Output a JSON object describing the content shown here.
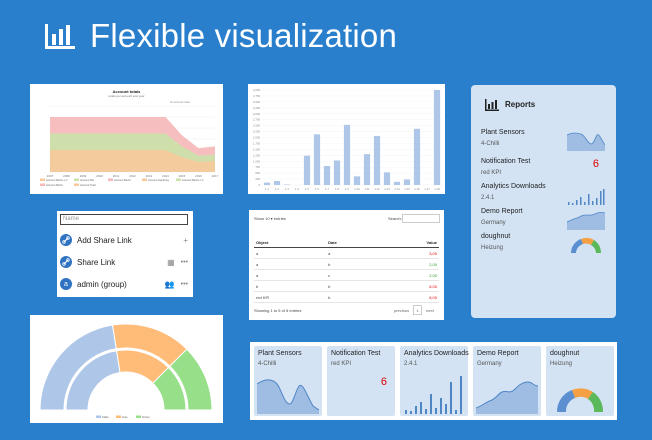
{
  "page": {
    "title": "Flexible visualization",
    "colors": {
      "background": "#2a7fcc",
      "accent_red": "#e00000",
      "bar_blue": "#aec7e8",
      "panel": "#d3e3f4"
    }
  },
  "area_chart": {
    "title": "Account totals",
    "subtitle": "totals per account and year",
    "toolbar": "Download data",
    "legend": [
      "Account Berlin e.V.",
      "Account Ber",
      "Account Berlin",
      "Account Hamburg",
      "Account Berlin e.V.",
      "Account Berlin",
      "Account Total"
    ],
    "chart_data": {
      "type": "area",
      "x": [
        "2007",
        "2008",
        "2009",
        "2010",
        "2011",
        "2012",
        "2013",
        "2014",
        "2015",
        "2016",
        "2017"
      ],
      "series": [
        {
          "values": [
            120000,
            120000,
            120000,
            120000,
            120000,
            120000,
            120000,
            120000,
            80000,
            55000,
            60000
          ]
        },
        {
          "values": [
            210000,
            210000,
            210000,
            210000,
            210000,
            210000,
            210000,
            210000,
            140000,
            90000,
            95000
          ]
        },
        {
          "values": [
            300000,
            300000,
            300000,
            300000,
            300000,
            300000,
            300000,
            300000,
            200000,
            130000,
            140000
          ]
        }
      ],
      "colors": [
        "#f7c99b",
        "#cbe2a8",
        "#f5b7b7"
      ]
    }
  },
  "bar_chart": {
    "chart_data": {
      "type": "bar",
      "categories": [
        "1.1",
        "1.2",
        "1.3",
        "1.4",
        "1.5",
        "1.6",
        "1.7",
        "1.8",
        "1.9",
        "1.10",
        "1.11",
        "1.12",
        "1.13",
        "1.14",
        "1.15",
        "1.16",
        "1.17",
        "1.18"
      ],
      "values": [
        150,
        250,
        30,
        0,
        1850,
        3200,
        1200,
        1550,
        3800,
        550,
        1950,
        3100,
        800,
        200,
        350,
        3550,
        5,
        6000
      ],
      "ylim": [
        0,
        6000
      ],
      "yticks": [
        "0",
        "200",
        "500",
        "750",
        "1,000",
        "1,250",
        "1,500",
        "1,750",
        "2,000",
        "2,250",
        "2,500",
        "2,750",
        "3,000",
        "3,250",
        "3,500",
        "3,750",
        "4,000"
      ]
    }
  },
  "reports": {
    "title": "Reports",
    "items": [
      {
        "name": "Plant Sensors",
        "sub": "4-Chilli"
      },
      {
        "name": "Notification Test",
        "sub": "red KPI",
        "kpi": "6"
      },
      {
        "name": "Analytics Downloads",
        "sub": "2.4.1"
      },
      {
        "name": "Demo Report",
        "sub": "Germany"
      },
      {
        "name": "doughnut",
        "sub": "Heizung"
      }
    ]
  },
  "share": {
    "placeholder": "Name",
    "rows": [
      {
        "label": "Add Share Link",
        "avatar": "🔗",
        "action": "+"
      },
      {
        "label": "Share Link",
        "avatar": "🔗",
        "action": "▦",
        "more": "•••"
      },
      {
        "label": "admin (group)",
        "avatar": "a",
        "action": "👥",
        "more": "•••"
      }
    ]
  },
  "table": {
    "show_label": "Show  10  ▾  entries",
    "search_label": "Search:",
    "headers": [
      "Object",
      "Date",
      "Value"
    ],
    "rows": [
      [
        "a",
        "a",
        "3,00"
      ],
      [
        "a",
        "b",
        "2,00"
      ],
      [
        "a",
        "c",
        "2,00"
      ],
      [
        "b",
        "b",
        "6,00"
      ],
      [
        "red KPI",
        "b",
        "6,00"
      ]
    ],
    "info": "Showing 1 to 5 of 5 entries",
    "prev": "previous",
    "page": "1",
    "next": "next"
  },
  "doughnut": {
    "legend": [
      "Kälte",
      "Gas",
      "Strom"
    ],
    "chart_data": {
      "type": "pie",
      "categories": [
        "Kälte",
        "Gas",
        "Strom"
      ],
      "values": [
        45,
        30,
        25
      ],
      "colors": [
        "#aec7e8",
        "#ffbb78",
        "#98df8a"
      ]
    }
  },
  "kpis": [
    {
      "name": "Plant Sensors",
      "sub": "4-Chilli"
    },
    {
      "name": "Notification Test",
      "sub": "red KPI",
      "value": "6"
    },
    {
      "name": "Analytics Downloads",
      "sub": "2.4.1"
    },
    {
      "name": "Demo Report",
      "sub": "Germany"
    },
    {
      "name": "doughnut",
      "sub": "Heizung"
    }
  ]
}
